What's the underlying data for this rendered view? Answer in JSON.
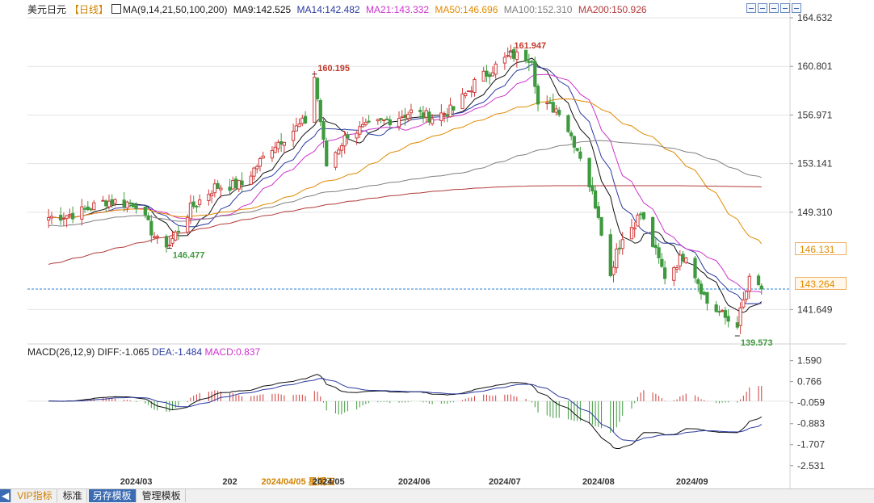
{
  "legend": {
    "pair": "美元日元",
    "period": "【日线】",
    "ma_label": "MA(9,14,21,50,100,200)",
    "ma9": "MA9:142.525",
    "ma14": "MA14:142.482",
    "ma21": "MA21:143.332",
    "ma50": "MA50:146.696",
    "ma100": "MA100:152.310",
    "ma200": "MA200:150.926"
  },
  "colors": {
    "up": "#d03a3a",
    "down": "#3f9a3f",
    "ma9": "#111111",
    "ma14": "#2a3aa0",
    "ma21": "#cc33cc",
    "ma50": "#e08a00",
    "ma100": "#808080",
    "ma200": "#b23a3a",
    "diff": "#111111",
    "dea": "#2a3aa0",
    "macd_label": "#cc33cc",
    "grid": "#e3e3e3",
    "current": "#2a7fd4"
  },
  "toolbar_icons": [
    "zoom-in-icon",
    "zoom-out-icon",
    "move-left-icon",
    "move-right-icon",
    "restore-icon"
  ],
  "price_axis": {
    "ticks": [
      "164.632",
      "160.801",
      "156.971",
      "153.141",
      "149.310",
      "146.131",
      "141.649"
    ],
    "min": 139.0,
    "max": 164.632
  },
  "markers": {
    "high_label": "161.947",
    "peak_label": "160.195",
    "low_label": "139.573",
    "trough_label": "146.477",
    "current_price": "143.264",
    "box_price": "146.131"
  },
  "macd_legend": {
    "name": "MACD(26,12,9)",
    "diff": "DIFF:-1.065",
    "dea": "DEA:-1.484",
    "macd": "MACD:0.837"
  },
  "macd_axis": {
    "ticks": [
      "1.590",
      "0.766",
      "-0.059",
      "-0.883",
      "-1.707",
      "-2.531"
    ]
  },
  "x_axis": {
    "labels": [
      "2024/03",
      "202",
      "2024/04/05 星期五",
      "2024/05",
      "2024/06",
      "2024/07",
      "2024/08",
      "2024/09"
    ]
  },
  "bottom_tabs": [
    "VIP指标",
    "标准",
    "另存模板",
    "管理模板"
  ],
  "chart_data": {
    "type": "candlestick",
    "title": "",
    "xlabel": "",
    "ylabel": "",
    "ylim": [
      139.0,
      164.632
    ],
    "series": [
      {
        "name": "MA9",
        "values": "moving average"
      },
      {
        "name": "MA14",
        "values": "moving average"
      }
    ],
    "anchors": [
      {
        "date": "2024-02-01",
        "close": 148.9
      },
      {
        "date": "2024-02-10",
        "close": 149.2
      },
      {
        "date": "2024-02-20",
        "close": 150.2
      },
      {
        "date": "2024-03-01",
        "close": 150.0
      },
      {
        "date": "2024-03-08",
        "close": 147.0
      },
      {
        "date": "2024-03-12",
        "close": 146.8
      },
      {
        "date": "2024-03-19",
        "close": 149.6
      },
      {
        "date": "2024-03-27",
        "close": 151.3
      },
      {
        "date": "2024-04-05",
        "close": 151.5
      },
      {
        "date": "2024-04-15",
        "close": 154.5
      },
      {
        "date": "2024-04-26",
        "close": 156.5
      },
      {
        "date": "2024-04-29",
        "close": 160.0
      },
      {
        "date": "2024-05-03",
        "close": 153.0
      },
      {
        "date": "2024-05-10",
        "close": 155.5
      },
      {
        "date": "2024-05-20",
        "close": 156.3
      },
      {
        "date": "2024-05-31",
        "close": 157.2
      },
      {
        "date": "2024-06-07",
        "close": 156.8
      },
      {
        "date": "2024-06-14",
        "close": 157.4
      },
      {
        "date": "2024-06-21",
        "close": 159.5
      },
      {
        "date": "2024-06-28",
        "close": 160.8
      },
      {
        "date": "2024-07-03",
        "close": 161.7
      },
      {
        "date": "2024-07-10",
        "close": 161.5
      },
      {
        "date": "2024-07-12",
        "close": 157.8
      },
      {
        "date": "2024-07-19",
        "close": 157.4
      },
      {
        "date": "2024-07-26",
        "close": 153.8
      },
      {
        "date": "2024-08-01",
        "close": 149.2
      },
      {
        "date": "2024-08-05",
        "close": 144.2
      },
      {
        "date": "2024-08-07",
        "close": 146.5
      },
      {
        "date": "2024-08-15",
        "close": 149.2
      },
      {
        "date": "2024-08-23",
        "close": 144.3
      },
      {
        "date": "2024-08-30",
        "close": 146.1
      },
      {
        "date": "2024-09-06",
        "close": 142.2
      },
      {
        "date": "2024-09-13",
        "close": 140.8
      },
      {
        "date": "2024-09-16",
        "close": 140.6
      },
      {
        "date": "2024-09-20",
        "close": 143.9
      },
      {
        "date": "2024-09-24",
        "close": 143.3
      }
    ]
  }
}
